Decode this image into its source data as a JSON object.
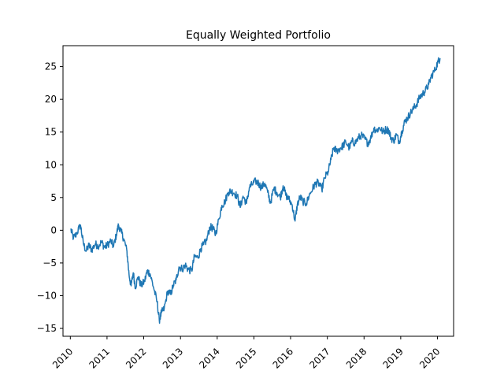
{
  "chart_data": {
    "type": "line",
    "title": "Equally Weighted Portfolio",
    "xlabel": "",
    "ylabel": "",
    "xlim": [
      "2009-10-20",
      "2020-06-10"
    ],
    "ylim": [
      -16.2,
      28.2
    ],
    "grid": false,
    "x_ticks": [
      "2010",
      "2011",
      "2012",
      "2013",
      "2014",
      "2015",
      "2016",
      "2017",
      "2018",
      "2019",
      "2020"
    ],
    "y_ticks": [
      -15,
      -10,
      -5,
      0,
      5,
      10,
      15,
      20,
      25
    ],
    "series": [
      {
        "color": "#1f77b4",
        "points": [
          [
            "2010-01-04",
            0.2
          ],
          [
            "2010-02-01",
            -1.2
          ],
          [
            "2010-03-01",
            -0.6
          ],
          [
            "2010-04-12",
            0.8
          ],
          [
            "2010-05-10",
            -2.0
          ],
          [
            "2010-06-07",
            -3.2
          ],
          [
            "2010-07-05",
            -2.3
          ],
          [
            "2010-08-02",
            -3.0
          ],
          [
            "2010-09-06",
            -2.1
          ],
          [
            "2010-10-04",
            -2.4
          ],
          [
            "2010-11-08",
            -1.8
          ],
          [
            "2010-12-06",
            -2.6
          ],
          [
            "2011-01-03",
            -2.3
          ],
          [
            "2011-02-07",
            -1.6
          ],
          [
            "2011-03-07",
            -2.5
          ],
          [
            "2011-04-04",
            -0.7
          ],
          [
            "2011-04-25",
            0.8
          ],
          [
            "2011-05-23",
            -0.3
          ],
          [
            "2011-06-20",
            -1.5
          ],
          [
            "2011-07-18",
            -3.2
          ],
          [
            "2011-08-08",
            -6.8
          ],
          [
            "2011-08-29",
            -8.5
          ],
          [
            "2011-09-19",
            -6.5
          ],
          [
            "2011-10-10",
            -8.7
          ],
          [
            "2011-11-07",
            -7.1
          ],
          [
            "2011-12-05",
            -8.5
          ],
          [
            "2012-01-09",
            -7.8
          ],
          [
            "2012-02-06",
            -6.2
          ],
          [
            "2012-03-05",
            -6.7
          ],
          [
            "2012-04-09",
            -8.8
          ],
          [
            "2012-05-14",
            -11.0
          ],
          [
            "2012-06-04",
            -13.8
          ],
          [
            "2012-06-25",
            -12.6
          ],
          [
            "2012-07-23",
            -12.0
          ],
          [
            "2012-08-27",
            -9.3
          ],
          [
            "2012-09-24",
            -9.8
          ],
          [
            "2012-10-22",
            -8.4
          ],
          [
            "2012-11-19",
            -7.6
          ],
          [
            "2012-12-17",
            -5.6
          ],
          [
            "2013-01-21",
            -5.9
          ],
          [
            "2013-02-18",
            -5.3
          ],
          [
            "2013-03-18",
            -6.0
          ],
          [
            "2013-04-22",
            -6.2
          ],
          [
            "2013-05-20",
            -4.0
          ],
          [
            "2013-06-24",
            -4.2
          ],
          [
            "2013-07-22",
            -2.8
          ],
          [
            "2013-08-19",
            -2.2
          ],
          [
            "2013-09-16",
            -1.6
          ],
          [
            "2013-10-21",
            0.5
          ],
          [
            "2013-11-18",
            0.3
          ],
          [
            "2013-12-16",
            -0.6
          ],
          [
            "2014-01-20",
            1.8
          ],
          [
            "2014-02-17",
            3.8
          ],
          [
            "2014-03-17",
            4.3
          ],
          [
            "2014-04-21",
            5.8
          ],
          [
            "2014-05-19",
            6.0
          ],
          [
            "2014-06-16",
            5.7
          ],
          [
            "2014-07-21",
            5.2
          ],
          [
            "2014-08-18",
            3.5
          ],
          [
            "2014-09-15",
            5.2
          ],
          [
            "2014-10-20",
            4.1
          ],
          [
            "2014-11-17",
            6.5
          ],
          [
            "2014-12-15",
            7.0
          ],
          [
            "2015-01-19",
            7.5
          ],
          [
            "2015-02-16",
            7.2
          ],
          [
            "2015-03-16",
            6.5
          ],
          [
            "2015-04-20",
            7.2
          ],
          [
            "2015-05-18",
            5.8
          ],
          [
            "2015-06-15",
            4.2
          ],
          [
            "2015-07-20",
            6.4
          ],
          [
            "2015-08-17",
            5.8
          ],
          [
            "2015-09-21",
            5.0
          ],
          [
            "2015-10-19",
            6.8
          ],
          [
            "2015-11-16",
            5.3
          ],
          [
            "2015-12-14",
            4.8
          ],
          [
            "2016-01-18",
            3.8
          ],
          [
            "2016-02-15",
            1.4
          ],
          [
            "2016-03-07",
            3.8
          ],
          [
            "2016-04-04",
            5.1
          ],
          [
            "2016-05-02",
            4.4
          ],
          [
            "2016-06-06",
            4.1
          ],
          [
            "2016-07-04",
            5.3
          ],
          [
            "2016-08-08",
            6.4
          ],
          [
            "2016-09-05",
            7.1
          ],
          [
            "2016-10-03",
            7.3
          ],
          [
            "2016-11-07",
            6.2
          ],
          [
            "2016-12-05",
            8.0
          ],
          [
            "2017-01-09",
            8.9
          ],
          [
            "2017-02-06",
            10.8
          ],
          [
            "2017-03-06",
            12.6
          ],
          [
            "2017-04-03",
            12.1
          ],
          [
            "2017-05-08",
            12.5
          ],
          [
            "2017-06-05",
            12.9
          ],
          [
            "2017-07-03",
            13.5
          ],
          [
            "2017-08-07",
            12.6
          ],
          [
            "2017-09-04",
            13.6
          ],
          [
            "2017-10-02",
            13.3
          ],
          [
            "2017-11-06",
            14.1
          ],
          [
            "2017-12-04",
            14.5
          ],
          [
            "2018-01-08",
            14.0
          ],
          [
            "2018-02-05",
            13.3
          ],
          [
            "2018-03-05",
            13.9
          ],
          [
            "2018-04-09",
            15.6
          ],
          [
            "2018-05-07",
            15.2
          ],
          [
            "2018-06-04",
            15.7
          ],
          [
            "2018-07-09",
            15.0
          ],
          [
            "2018-08-06",
            15.4
          ],
          [
            "2018-09-03",
            15.3
          ],
          [
            "2018-09-24",
            14.2
          ],
          [
            "2018-10-22",
            13.6
          ],
          [
            "2018-11-19",
            14.6
          ],
          [
            "2018-12-17",
            13.5
          ],
          [
            "2019-01-14",
            15.2
          ],
          [
            "2019-02-11",
            16.6
          ],
          [
            "2019-03-11",
            17.2
          ],
          [
            "2019-04-08",
            17.9
          ],
          [
            "2019-05-13",
            18.7
          ],
          [
            "2019-06-10",
            19.3
          ],
          [
            "2019-07-08",
            20.3
          ],
          [
            "2019-08-05",
            20.8
          ],
          [
            "2019-09-02",
            21.3
          ],
          [
            "2019-10-07",
            22.3
          ],
          [
            "2019-11-04",
            23.6
          ],
          [
            "2019-12-09",
            24.5
          ],
          [
            "2020-01-06",
            25.7
          ],
          [
            "2020-01-27",
            26.3
          ]
        ]
      }
    ]
  }
}
